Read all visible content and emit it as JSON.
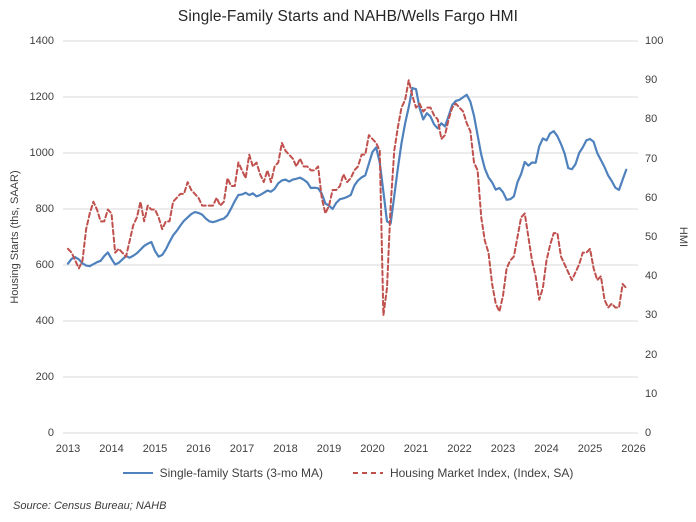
{
  "source_note": "Source: Census Bureau; NAHB",
  "chart_data": {
    "type": "line",
    "title": "Single-Family Starts and NAHB/Wells Fargo HMI",
    "x_frequency": "monthly",
    "x_start": "2013-01",
    "x_end": "2025-11",
    "x_tick_labels": [
      "2013",
      "2014",
      "2015",
      "2016",
      "2017",
      "2018",
      "2019",
      "2020",
      "2021",
      "2022",
      "2023",
      "2024",
      "2025",
      "2026"
    ],
    "grid": "horizontal-only",
    "grid_color": "#D9D9D9",
    "legend_position": "bottom",
    "left_axis": {
      "title": "Housing Starts (ths, SAAR)",
      "min": 0,
      "max": 1400,
      "tick_step": 200,
      "ticks": [
        0,
        200,
        400,
        600,
        800,
        1000,
        1200,
        1400
      ]
    },
    "right_axis": {
      "title": "HMI",
      "min": 0,
      "max": 100,
      "tick_step": 10,
      "ticks": [
        0,
        10,
        20,
        30,
        40,
        50,
        60,
        70,
        80,
        90,
        100
      ]
    },
    "series": [
      {
        "id": "starts",
        "name": "Single-family Starts (3-mo MA)",
        "axis": "left",
        "color": "#4F81BD",
        "style": "solid",
        "values": [
          605,
          622,
          628,
          620,
          606,
          598,
          596,
          603,
          610,
          615,
          632,
          645,
          622,
          602,
          608,
          620,
          632,
          626,
          633,
          642,
          655,
          668,
          676,
          682,
          650,
          630,
          636,
          656,
          682,
          706,
          722,
          741,
          758,
          770,
          782,
          789,
          786,
          780,
          766,
          756,
          753,
          757,
          762,
          766,
          778,
          802,
          828,
          850,
          852,
          858,
          850,
          856,
          845,
          850,
          858,
          866,
          862,
          872,
          892,
          902,
          905,
          898,
          905,
          908,
          912,
          905,
          895,
          875,
          876,
          874,
          855,
          820,
          812,
          800,
          822,
          835,
          838,
          843,
          850,
          884,
          902,
          913,
          920,
          962,
          1004,
          1020,
          966,
          862,
          756,
          748,
          846,
          946,
          1035,
          1106,
          1164,
          1232,
          1228,
          1160,
          1120,
          1142,
          1130,
          1102,
          1088,
          1106,
          1095,
          1132,
          1172,
          1186,
          1190,
          1199,
          1208,
          1183,
          1133,
          1063,
          994,
          944,
          913,
          895,
          869,
          875,
          860,
          833,
          835,
          845,
          896,
          925,
          968,
          955,
          966,
          965,
          1024,
          1052,
          1045,
          1070,
          1078,
          1060,
          1032,
          998,
          946,
          942,
          960,
          1000,
          1020,
          1045,
          1050,
          1040,
          1000,
          975,
          950,
          920,
          900,
          876,
          868,
          905,
          940
        ]
      },
      {
        "id": "hmi",
        "name": "Housing Market Index, (Index, SA)",
        "axis": "right",
        "color": "#C0504D",
        "style": "dashed",
        "values": [
          47,
          46,
          44,
          42,
          44,
          52,
          56,
          59,
          57,
          54,
          54,
          57,
          56,
          46,
          47,
          46,
          45,
          49,
          53,
          55,
          59,
          54,
          58,
          57,
          57,
          55,
          52,
          54,
          54,
          59,
          60,
          61,
          61,
          64,
          62,
          61,
          60,
          58,
          58,
          58,
          58,
          60,
          58,
          59,
          65,
          63,
          63,
          69,
          67,
          65,
          71,
          68,
          69,
          66,
          64,
          67,
          64,
          68,
          69,
          74,
          72,
          71,
          70,
          68,
          70,
          68,
          68,
          67,
          67,
          68,
          60,
          56,
          58,
          62,
          62,
          63,
          66,
          64,
          65,
          67,
          68,
          71,
          71,
          76,
          75,
          74,
          72,
          30,
          37,
          58,
          72,
          78,
          83,
          85,
          90,
          86,
          83,
          84,
          82,
          83,
          83,
          81,
          80,
          75,
          76,
          80,
          83,
          84,
          83,
          82,
          79,
          77,
          69,
          67,
          55,
          49,
          46,
          38,
          33,
          31,
          35,
          42,
          44,
          45,
          50,
          55,
          56,
          50,
          44,
          40,
          34,
          37,
          44,
          48,
          51,
          51,
          45,
          43,
          41,
          39,
          41,
          43,
          46,
          46,
          47,
          42,
          39,
          40,
          34,
          32,
          33,
          32,
          32,
          38,
          37
        ]
      }
    ]
  }
}
